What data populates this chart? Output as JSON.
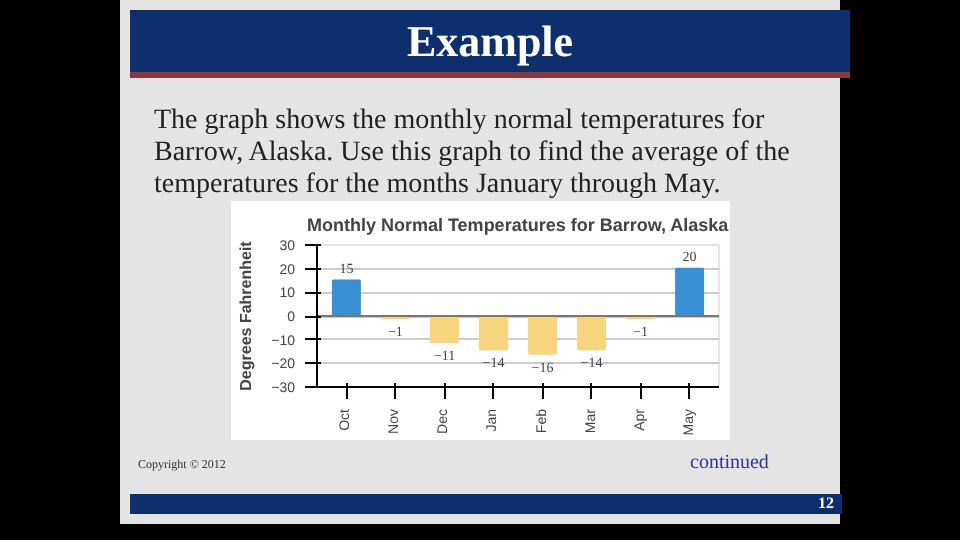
{
  "chart_data": {
    "type": "bar",
    "title": "Monthly Normal Temperatures for Barrow, Alaska",
    "ylabel": "Degrees Fahrenheit",
    "categories": [
      "Oct",
      "Nov",
      "Dec",
      "Jan",
      "Feb",
      "Mar",
      "Apr",
      "May"
    ],
    "values": [
      15,
      -1,
      -11,
      -14,
      -16,
      -14,
      -1,
      20
    ],
    "colors": [
      "#3b8fd4",
      "#f8d47c",
      "#f8d47c",
      "#f8d47c",
      "#f8d47c",
      "#f8d47c",
      "#f8d47c",
      "#3b8fd4"
    ],
    "value_labels": [
      "15",
      "−1",
      "−11",
      "−14",
      "−16",
      "−14",
      "−1",
      "20"
    ],
    "ylim": [
      -30,
      30
    ],
    "yticks": [
      -30,
      -20,
      -10,
      0,
      10,
      20,
      30
    ],
    "grid": "y",
    "annotations": [
      "Example",
      "The graph shows the monthly normal temperatures for Barrow, Alaska. Use this graph to find the average of the temperatures for the months January through May.",
      "Copyright © 2012",
      "continued",
      "12"
    ]
  }
}
